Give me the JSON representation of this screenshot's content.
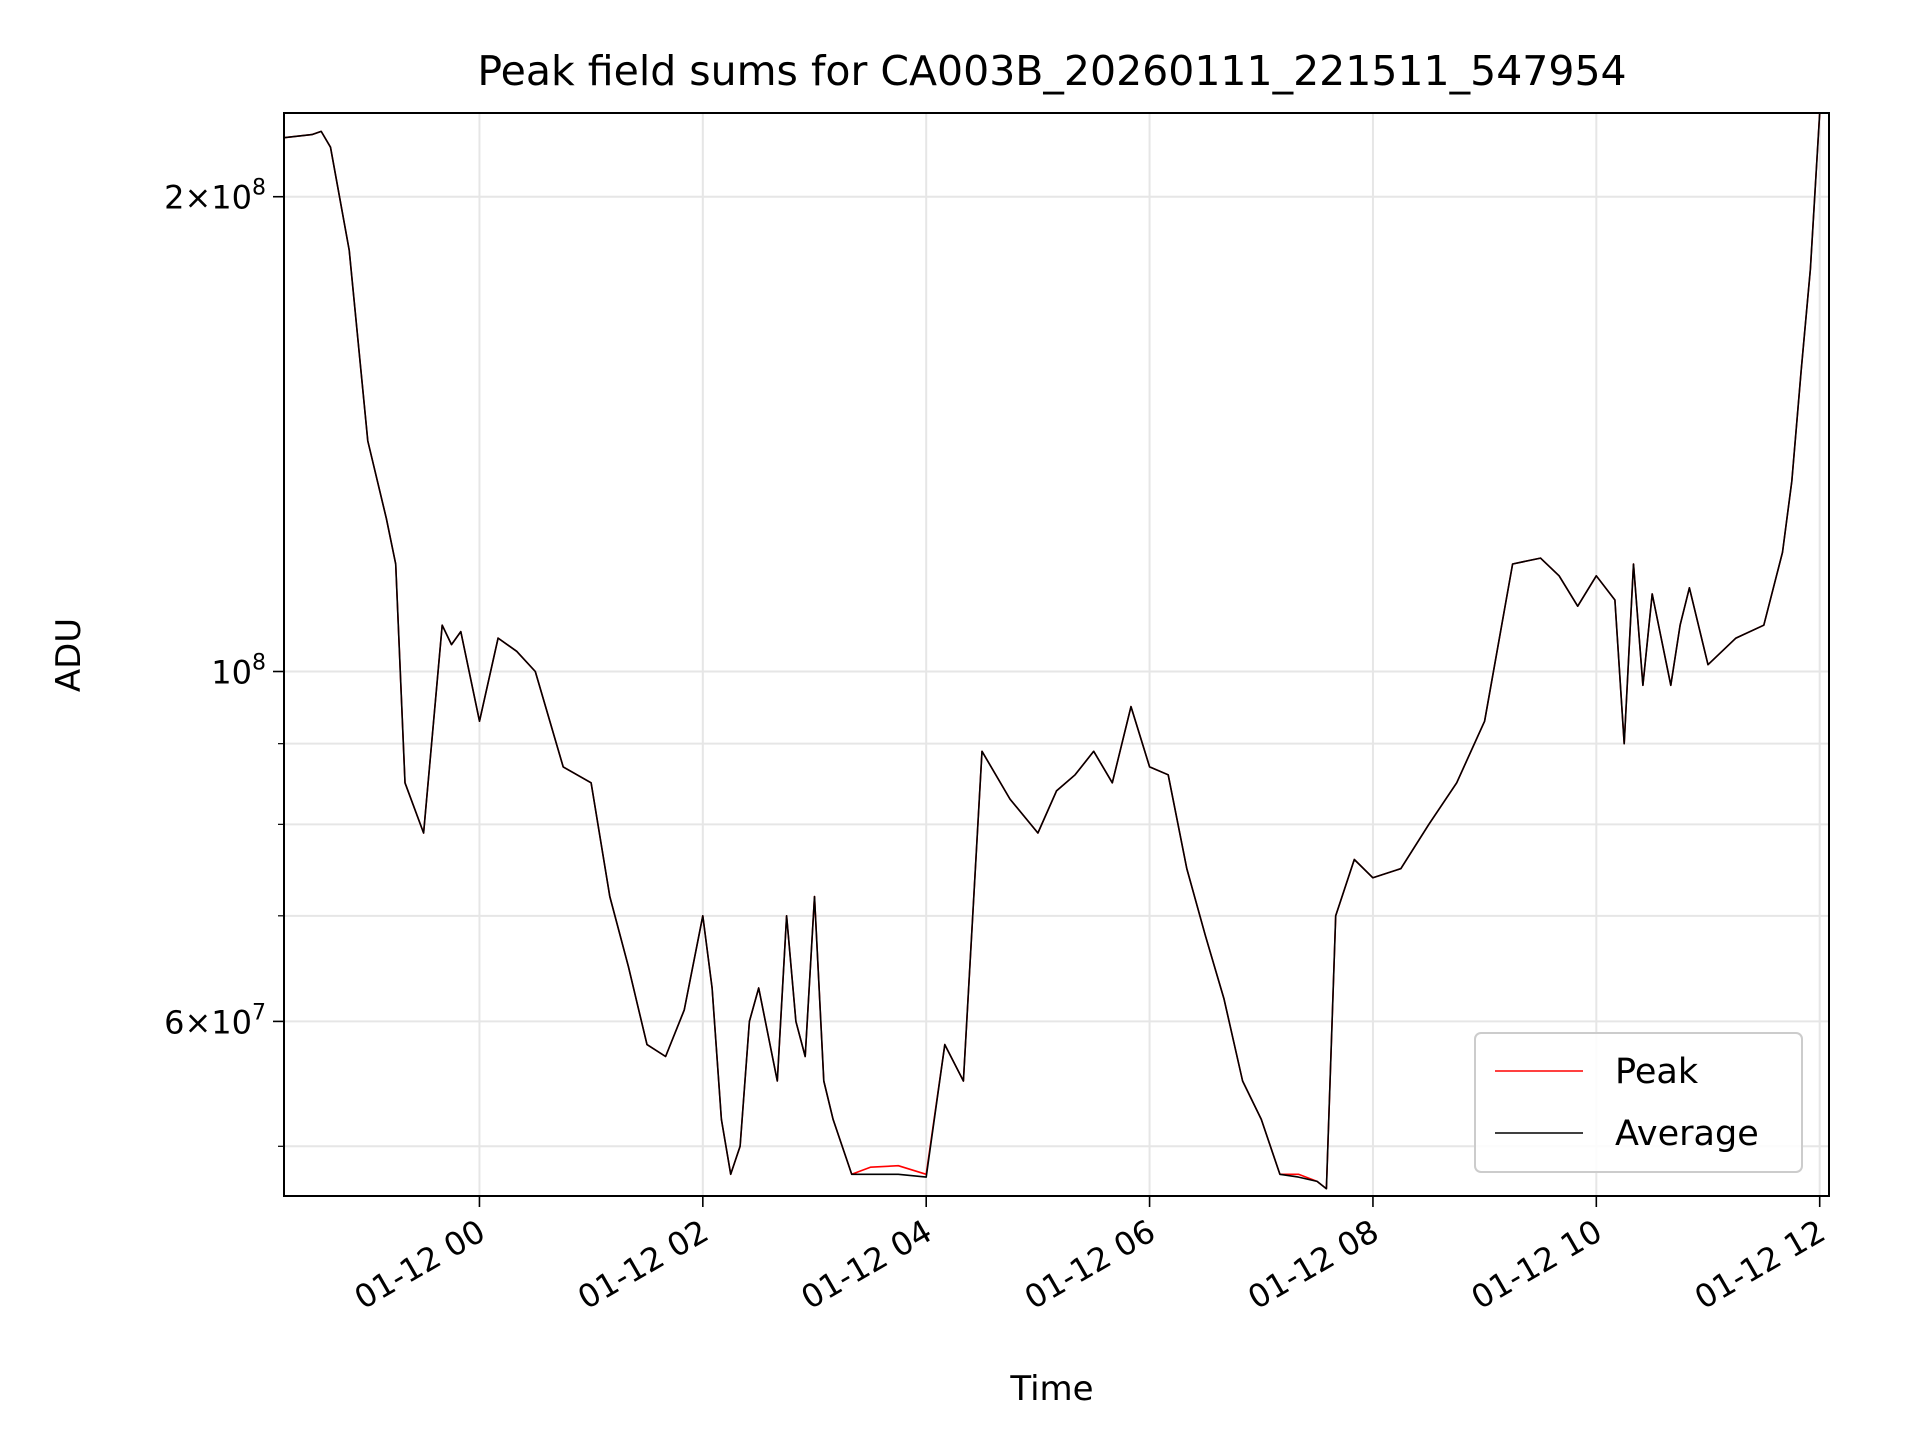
{
  "chart_data": {
    "type": "line",
    "title": "Peak field sums for CA003B_20260111_221511_547954",
    "xlabel": "Time",
    "ylabel": "ADU",
    "y_scale": "log",
    "xlim": [
      "2026-01-11 22:15",
      "2026-01-12 12:05"
    ],
    "ylim": [
      46500000,
      226000000
    ],
    "x_ticks": [
      "01-12 00",
      "01-12 02",
      "01-12 04",
      "01-12 06",
      "01-12 08",
      "01-12 10",
      "01-12 12"
    ],
    "y_ticks": [
      {
        "value": 60000000,
        "mantissa": "6",
        "exponent": "7",
        "label": "6 × 10^7"
      },
      {
        "value": 100000000,
        "mantissa": "",
        "exponent": "8",
        "label": "10^8"
      },
      {
        "value": 200000000,
        "mantissa": "2",
        "exponent": "8",
        "label": "2 × 10^8"
      }
    ],
    "y_minor_ticks": [
      50000000,
      70000000,
      80000000,
      90000000
    ],
    "grid": true,
    "legend": {
      "position": "lower right",
      "entries": [
        "Peak",
        "Average"
      ]
    },
    "colors": {
      "Peak": "#ff0000",
      "Average": "#000000"
    },
    "x": [
      "01-11 22:15",
      "01-11 22:30",
      "01-11 22:35",
      "01-11 22:40",
      "01-11 22:50",
      "01-11 23:00",
      "01-11 23:10",
      "01-11 23:15",
      "01-11 23:20",
      "01-11 23:30",
      "01-11 23:40",
      "01-11 23:45",
      "01-11 23:50",
      "01-12 00:00",
      "01-12 00:10",
      "01-12 00:20",
      "01-12 00:30",
      "01-12 00:45",
      "01-12 01:00",
      "01-12 01:10",
      "01-12 01:20",
      "01-12 01:30",
      "01-12 01:40",
      "01-12 01:50",
      "01-12 02:00",
      "01-12 02:05",
      "01-12 02:10",
      "01-12 02:15",
      "01-12 02:20",
      "01-12 02:25",
      "01-12 02:30",
      "01-12 02:40",
      "01-12 02:45",
      "01-12 02:50",
      "01-12 02:55",
      "01-12 03:00",
      "01-12 03:05",
      "01-12 03:10",
      "01-12 03:20",
      "01-12 03:30",
      "01-12 03:45",
      "01-12 04:00",
      "01-12 04:10",
      "01-12 04:20",
      "01-12 04:30",
      "01-12 04:45",
      "01-12 05:00",
      "01-12 05:10",
      "01-12 05:20",
      "01-12 05:30",
      "01-12 05:40",
      "01-12 05:50",
      "01-12 06:00",
      "01-12 06:10",
      "01-12 06:20",
      "01-12 06:30",
      "01-12 06:40",
      "01-12 06:50",
      "01-12 07:00",
      "01-12 07:10",
      "01-12 07:20",
      "01-12 07:30",
      "01-12 07:35",
      "01-12 07:40",
      "01-12 07:50",
      "01-12 08:00",
      "01-12 08:15",
      "01-12 08:30",
      "01-12 08:45",
      "01-12 09:00",
      "01-12 09:15",
      "01-12 09:30",
      "01-12 09:40",
      "01-12 09:50",
      "01-12 10:00",
      "01-12 10:10",
      "01-12 10:15",
      "01-12 10:20",
      "01-12 10:25",
      "01-12 10:30",
      "01-12 10:40",
      "01-12 10:45",
      "01-12 10:50",
      "01-12 11:00",
      "01-12 11:15",
      "01-12 11:30",
      "01-12 11:40",
      "01-12 11:45",
      "01-12 11:50",
      "01-12 11:55",
      "01-12 12:00"
    ],
    "series": [
      {
        "name": "Peak",
        "values": [
          218,
          219,
          220,
          215,
          185,
          140,
          125,
          117,
          85,
          79,
          107,
          104,
          106,
          93,
          105,
          103,
          100,
          87,
          85,
          72,
          65,
          58,
          57,
          61,
          70,
          63,
          52,
          48,
          50,
          60,
          63,
          55,
          70,
          60,
          57,
          72,
          55,
          52,
          48,
          48.5,
          48.6,
          48,
          58,
          55,
          89,
          83,
          79,
          84,
          86,
          89,
          85,
          95,
          87,
          86,
          75,
          68,
          62,
          55,
          52,
          48,
          48,
          47.5,
          47,
          70,
          76,
          74,
          75,
          80,
          85,
          93,
          117,
          118,
          115,
          110,
          115,
          111,
          90,
          117,
          98,
          112,
          98,
          107,
          113,
          101,
          105,
          107,
          119,
          132,
          155,
          180,
          226
        ]
      },
      {
        "name": "Average",
        "values": [
          218,
          219,
          220,
          215,
          185,
          140,
          125,
          117,
          85,
          79,
          107,
          104,
          106,
          93,
          105,
          103,
          100,
          87,
          85,
          72,
          65,
          58,
          57,
          61,
          70,
          63,
          52,
          48,
          50,
          60,
          63,
          55,
          70,
          60,
          57,
          72,
          55,
          52,
          48,
          48,
          48,
          47.8,
          58,
          55,
          89,
          83,
          79,
          84,
          86,
          89,
          85,
          95,
          87,
          86,
          75,
          68,
          62,
          55,
          52,
          48,
          47.8,
          47.5,
          47,
          70,
          76,
          74,
          75,
          80,
          85,
          93,
          117,
          118,
          115,
          110,
          115,
          111,
          90,
          117,
          98,
          112,
          98,
          107,
          113,
          101,
          105,
          107,
          119,
          132,
          155,
          180,
          226
        ]
      }
    ]
  }
}
